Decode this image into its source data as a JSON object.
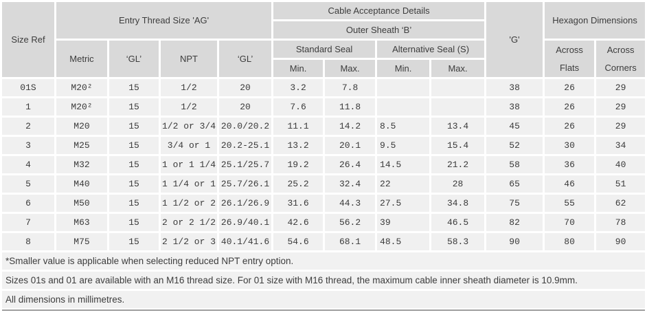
{
  "colors": {
    "header_bg": "#d9d9d9",
    "cell_bg": "#f0f0f0",
    "note_bg": "#f1f1f1",
    "gap": "#ffffff",
    "text": "#3c3c3c",
    "bottom_rule": "#9e9e9e"
  },
  "header": {
    "size_ref": "Size Ref",
    "entry_thread_group": "Entry Thread Size 'AG'",
    "metric": "Metric",
    "gl_1": "‘GL’",
    "npt": "NPT",
    "gl_2": "‘GL’",
    "cable_acceptance_group": "Cable Acceptance Details",
    "outer_sheath_group": "Outer Sheath ‘B’",
    "standard_seal_group": "Standard Seal",
    "alternative_seal_group": "Alternative Seal (S)",
    "std_min": "Min.",
    "std_max": "Max.",
    "alt_min": "Min.",
    "alt_max": "Max.",
    "g": "'G'",
    "hexagon_group": "Hexagon Dimensions",
    "across_flats": "Across\nFlats",
    "across_corners": "Across\nCorners"
  },
  "rows": [
    [
      "01S",
      "M20²",
      "15",
      "1/2",
      "20",
      "3.2",
      "7.8",
      "",
      "",
      "38",
      "26",
      "29"
    ],
    [
      "1",
      "M20²",
      "15",
      "1/2",
      "20",
      "7.6",
      "11.8",
      "",
      "",
      "38",
      "26",
      "29"
    ],
    [
      "2",
      "M20",
      "15",
      "1/2 or 3/4",
      "20.0/20.2",
      "11.1",
      "14.2",
      "8.5",
      "13.4",
      "45",
      "26",
      "29"
    ],
    [
      "3",
      "M25",
      "15",
      "3/4 or 1",
      "20.2-25.1",
      "13.2",
      "20.1",
      "9.5",
      "15.4",
      "52",
      "30",
      "34"
    ],
    [
      "4",
      "M32",
      "15",
      "1 or 1 1/4",
      "25.1/25.7",
      "19.2",
      "26.4",
      "14.5",
      "21.2",
      "58",
      "36",
      "40"
    ],
    [
      "5",
      "M40",
      "15",
      "1 1/4 or 1",
      "25.7/26.1",
      "25.2",
      "32.4",
      "22",
      "28",
      "65",
      "46",
      "51"
    ],
    [
      "6",
      "M50",
      "15",
      "1 1/2 or 2",
      "26.1/26.9",
      "31.6",
      "44.3",
      "27.5",
      "34.8",
      "75",
      "55",
      "62"
    ],
    [
      "7",
      "M63",
      "15",
      "2 or 2 1/2",
      "26.9/40.1",
      "42.6",
      "56.2",
      "39",
      "46.5",
      "82",
      "70",
      "78"
    ],
    [
      "8",
      "M75",
      "15",
      "2 1/2 or 3",
      "40.1/41.6",
      "54.6",
      "68.1",
      "48.5",
      "58.3",
      "90",
      "80",
      "90"
    ]
  ],
  "notes": [
    "*Smaller value is applicable when selecting reduced NPT entry option.",
    "Sizes 01s and 01 are available with an M16 thread size. For 01 size with M16 thread, the maximum cable inner sheath diameter is 10.9mm.",
    "All dimensions in millimetres."
  ]
}
